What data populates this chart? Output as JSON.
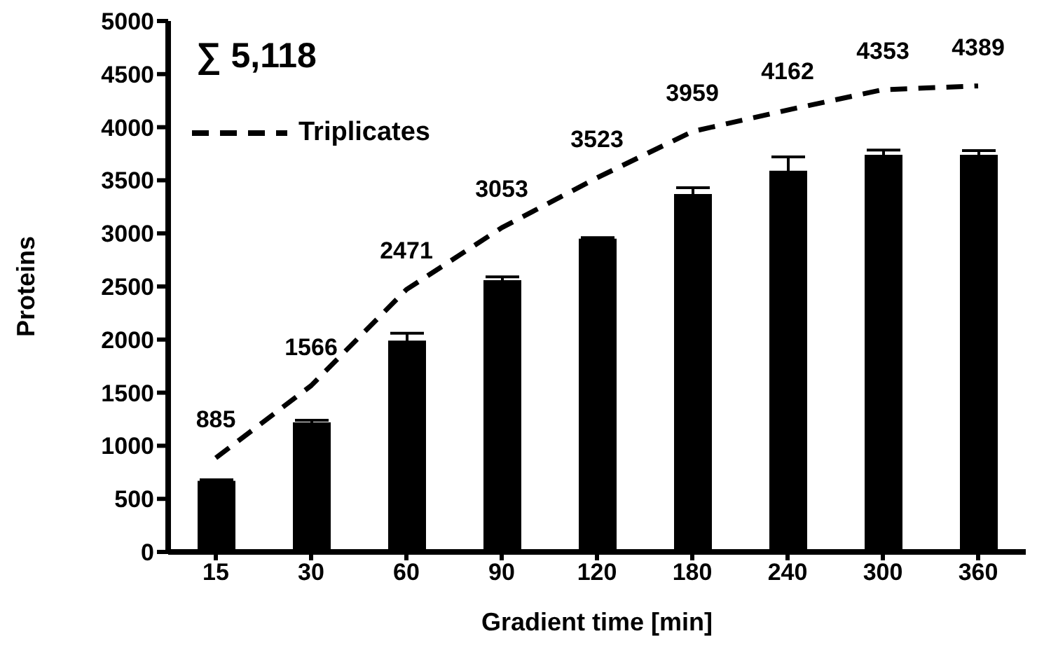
{
  "chart_data": {
    "type": "bar",
    "xlabel": "Gradient time [min]",
    "ylabel": "Proteins",
    "categories": [
      "15",
      "30",
      "60",
      "90",
      "120",
      "180",
      "240",
      "300",
      "360"
    ],
    "series": [
      {
        "color": "#000000",
        "values": [
          670,
          1220,
          1990,
          2560,
          2950,
          3370,
          3590,
          3740,
          3740
        ],
        "errors": [
          10,
          20,
          70,
          30,
          10,
          60,
          130,
          45,
          40
        ]
      },
      {
        "type": "line",
        "name": "Triplicates",
        "color": "#000000",
        "line_style": "dashed",
        "marker": "none",
        "values": [
          885,
          1566,
          2471,
          3053,
          3523,
          3959,
          4162,
          4353,
          4389
        ],
        "value_labels": [
          "885",
          "1566",
          "2471",
          "3053",
          "3523",
          "3959",
          "4162",
          "4353",
          "4389"
        ]
      }
    ],
    "ylim": [
      0,
      5000
    ],
    "yticks": [
      0,
      500,
      1000,
      1500,
      2000,
      2500,
      3000,
      3500,
      4000,
      4500,
      5000
    ],
    "grid": false,
    "legend": "top left",
    "annotations": [
      "∑ 5,118"
    ]
  }
}
